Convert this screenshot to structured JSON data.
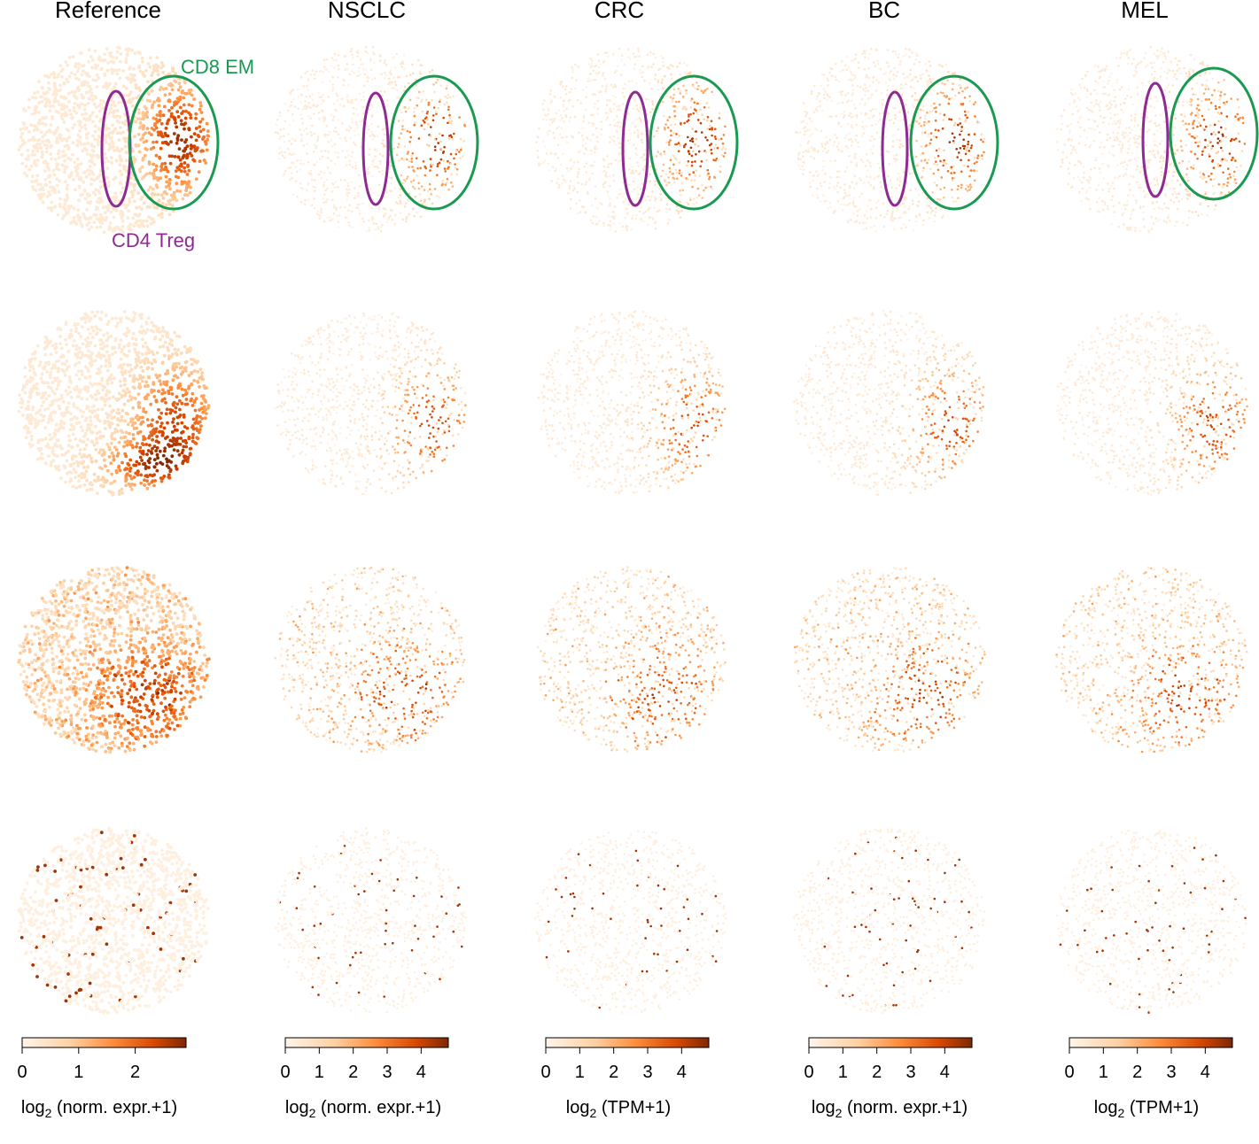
{
  "chart_data": {
    "type": "scatter",
    "description_kind": "grid of embedding scatter plots colored by expression",
    "columns": [
      {
        "title": "Reference",
        "colorbar": {
          "ticks": [
            0,
            1,
            2
          ],
          "max": 2.9,
          "label_main": "log",
          "label_sub": "2",
          "label_rest": " (norm. expr.+1)"
        }
      },
      {
        "title": "NSCLC",
        "colorbar": {
          "ticks": [
            0,
            1,
            2,
            3,
            4
          ],
          "max": 4.8,
          "label_main": "log",
          "label_sub": "2",
          "label_rest": " (norm. expr.+1)"
        }
      },
      {
        "title": "CRC",
        "colorbar": {
          "ticks": [
            0,
            1,
            2,
            3,
            4
          ],
          "max": 4.8,
          "label_main": "log",
          "label_sub": "2",
          "label_rest": " (TPM+1)"
        }
      },
      {
        "title": "BC",
        "colorbar": {
          "ticks": [
            0,
            1,
            2,
            3,
            4
          ],
          "max": 4.8,
          "label_main": "log",
          "label_sub": "2",
          "label_rest": " (norm. expr.+1)"
        }
      },
      {
        "title": "MEL",
        "colorbar": {
          "ticks": [
            0,
            1,
            2,
            3,
            4
          ],
          "max": 4.8,
          "label_main": "log",
          "label_sub": "2",
          "label_rest": " (TPM+1)"
        }
      }
    ],
    "rows": 4,
    "annotations": [
      {
        "text": "CD8 EM",
        "color": "#1a9a50"
      },
      {
        "text": "CD4 Treg",
        "color": "#8e2a92"
      }
    ],
    "colormap": [
      "#fff5eb",
      "#fdd0a2",
      "#fd8d3c",
      "#d94801",
      "#7f2704"
    ]
  }
}
